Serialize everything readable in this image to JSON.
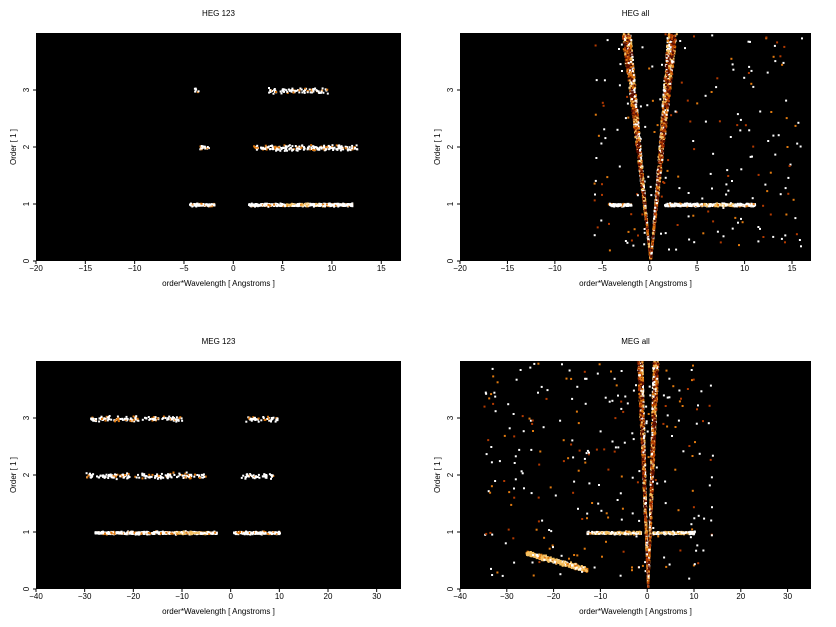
{
  "chart_data": [
    {
      "type": "heatmap",
      "title": "HEG 123",
      "xlabel": "order*Wavelength [ Angstroms ]",
      "ylabel": "Order [ 1 ]",
      "xlim": [
        -20,
        17
      ],
      "ylim": [
        0,
        4
      ],
      "xticks": [
        -20,
        -15,
        -10,
        -5,
        0,
        5,
        10,
        15
      ],
      "yticks": [
        0,
        1,
        2,
        3
      ],
      "colormap": [
        "#000000",
        "#5a0d00",
        "#b33a00",
        "#e07a10",
        "#f5c060",
        "#ffffff"
      ],
      "bands": [
        {
          "order": 1,
          "x_ranges": [
            [
              -4.5,
              -2.0
            ],
            [
              1.5,
              12.0
            ]
          ],
          "peak": [
            5,
            9
          ],
          "density": 0.95
        },
        {
          "order": 2,
          "x_ranges": [
            [
              -3.5,
              -2.5
            ],
            [
              2.0,
              12.5
            ]
          ],
          "density": 0.35
        },
        {
          "order": 3,
          "x_ranges": [
            [
              -4.0,
              -3.5
            ],
            [
              3.5,
              9.5
            ]
          ],
          "density": 0.25
        }
      ],
      "wedges": []
    },
    {
      "type": "heatmap",
      "title": "HEG all",
      "xlabel": "order*Wavelength [ Angstroms ]",
      "ylabel": "Order [ 1 ]",
      "xlim": [
        -20,
        17
      ],
      "ylim": [
        0,
        4
      ],
      "xticks": [
        -20,
        -15,
        -10,
        -5,
        0,
        5,
        10,
        15
      ],
      "yticks": [
        0,
        1,
        2,
        3
      ],
      "colormap": [
        "#000000",
        "#5a0d00",
        "#b33a00",
        "#e07a10",
        "#f5c060",
        "#ffffff"
      ],
      "bands": [
        {
          "order": 1,
          "x_ranges": [
            [
              -4.5,
              -2.0
            ],
            [
              1.5,
              11.0
            ]
          ],
          "peak": [
            5,
            9
          ],
          "density": 0.95
        }
      ],
      "wedges": [
        {
          "side": "left",
          "inner_slope": -1.9,
          "outer_slope": -1.35,
          "density": 0.55
        },
        {
          "side": "right",
          "inner_slope": 2.2,
          "outer_slope": 1.45,
          "density": 0.6
        }
      ],
      "background_region": {
        "x": [
          -6,
          16
        ],
        "y": [
          0.2,
          4
        ],
        "density": 0.12
      }
    },
    {
      "type": "heatmap",
      "title": "MEG 123",
      "xlabel": "order*Wavelength [ Angstroms ]",
      "ylabel": "Order [ 1 ]",
      "xlim": [
        -40,
        35
      ],
      "ylim": [
        0,
        4
      ],
      "xticks": [
        -40,
        -30,
        -20,
        -10,
        0,
        10,
        20,
        30
      ],
      "yticks": [
        0,
        1,
        2,
        3
      ],
      "colormap": [
        "#000000",
        "#5a0d00",
        "#b33a00",
        "#e07a10",
        "#f5c060",
        "#ffffff"
      ],
      "bands": [
        {
          "order": 1,
          "x_ranges": [
            [
              -28.0,
              -3.0
            ],
            [
              0.5,
              10.0
            ]
          ],
          "peak": [
            -12,
            -4
          ],
          "density": 0.95
        },
        {
          "order": 2,
          "x_ranges": [
            [
              -30.0,
              -5.0
            ],
            [
              2.0,
              9.0
            ]
          ],
          "density": 0.3
        },
        {
          "order": 3,
          "x_ranges": [
            [
              -29.0,
              -10.0
            ],
            [
              3.0,
              9.5
            ]
          ],
          "density": 0.35
        }
      ],
      "wedges": []
    },
    {
      "type": "heatmap",
      "title": "MEG all",
      "xlabel": "order*Wavelength [ Angstroms ]",
      "ylabel": "Order [ 1 ]",
      "xlim": [
        -40,
        35
      ],
      "ylim": [
        0,
        4
      ],
      "xticks": [
        -40,
        -30,
        -20,
        -10,
        0,
        10,
        20,
        30
      ],
      "yticks": [
        0,
        1,
        2,
        3
      ],
      "colormap": [
        "#000000",
        "#5a0d00",
        "#b33a00",
        "#e07a10",
        "#f5c060",
        "#ffffff"
      ],
      "bands": [
        {
          "order": 1,
          "x_ranges": [
            [
              -13.0,
              -1.5
            ],
            [
              1.0,
              10.0
            ]
          ],
          "peak": [
            -12,
            9
          ],
          "density": 0.95
        }
      ],
      "wedges": [
        {
          "side": "left",
          "inner_slope": -3.4,
          "outer_slope": -1.8,
          "density": 0.5
        },
        {
          "side": "right",
          "inner_slope": 3.6,
          "outer_slope": 1.8,
          "density": 0.55
        }
      ],
      "background_region": {
        "x": [
          -35,
          14
        ],
        "y": [
          0.2,
          4
        ],
        "density": 0.15
      },
      "extra_arc": {
        "x": [
          -26,
          -13
        ],
        "y_center": [
          0.65,
          0.35
        ],
        "density": 0.9
      }
    }
  ]
}
